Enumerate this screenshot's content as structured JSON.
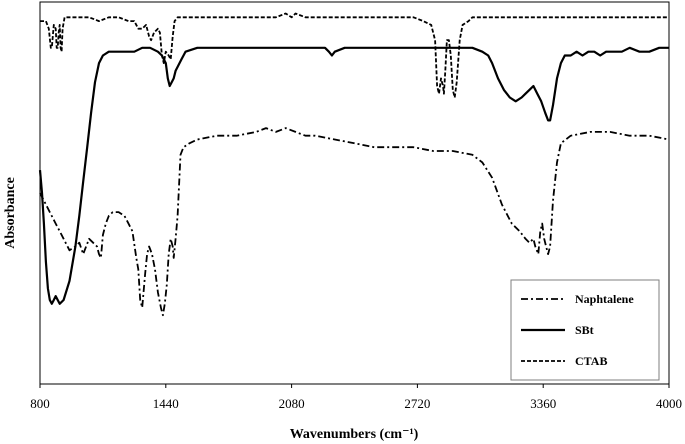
{
  "chart_data": {
    "type": "line",
    "xlabel": "Wavenumbers (cm⁻¹)",
    "ylabel": "Absorbance",
    "xlim": [
      800,
      4000
    ],
    "ylim": [
      0,
      1
    ],
    "x_ticks": [
      "800",
      "1440",
      "2080",
      "2720",
      "3360",
      "4000"
    ],
    "x_tick_values": [
      800,
      1440,
      2080,
      2720,
      3360,
      4000
    ],
    "grid": false,
    "legend_position": "bottom-right",
    "series": [
      {
        "name": "Naphtalene",
        "style": "dash-dot",
        "points": [
          [
            800,
            0.5
          ],
          [
            820,
            0.48
          ],
          [
            850,
            0.45
          ],
          [
            880,
            0.42
          ],
          [
            900,
            0.4
          ],
          [
            920,
            0.38
          ],
          [
            950,
            0.35
          ],
          [
            980,
            0.36
          ],
          [
            1000,
            0.37
          ],
          [
            1020,
            0.34
          ],
          [
            1050,
            0.38
          ],
          [
            1070,
            0.37
          ],
          [
            1090,
            0.36
          ],
          [
            1100,
            0.34
          ],
          [
            1110,
            0.33
          ],
          [
            1120,
            0.39
          ],
          [
            1135,
            0.42
          ],
          [
            1150,
            0.44
          ],
          [
            1170,
            0.45
          ],
          [
            1200,
            0.45
          ],
          [
            1230,
            0.44
          ],
          [
            1250,
            0.42
          ],
          [
            1270,
            0.4
          ],
          [
            1290,
            0.33
          ],
          [
            1300,
            0.3
          ],
          [
            1310,
            0.22
          ],
          [
            1320,
            0.2
          ],
          [
            1335,
            0.29
          ],
          [
            1345,
            0.34
          ],
          [
            1355,
            0.36
          ],
          [
            1370,
            0.34
          ],
          [
            1385,
            0.3
          ],
          [
            1400,
            0.24
          ],
          [
            1415,
            0.2
          ],
          [
            1425,
            0.18
          ],
          [
            1435,
            0.21
          ],
          [
            1445,
            0.26
          ],
          [
            1455,
            0.34
          ],
          [
            1465,
            0.38
          ],
          [
            1475,
            0.36
          ],
          [
            1480,
            0.33
          ],
          [
            1490,
            0.38
          ],
          [
            1500,
            0.44
          ],
          [
            1515,
            0.6
          ],
          [
            1530,
            0.62
          ],
          [
            1560,
            0.63
          ],
          [
            1600,
            0.64
          ],
          [
            1700,
            0.65
          ],
          [
            1800,
            0.65
          ],
          [
            1900,
            0.66
          ],
          [
            1950,
            0.67
          ],
          [
            2000,
            0.66
          ],
          [
            2050,
            0.67
          ],
          [
            2100,
            0.66
          ],
          [
            2150,
            0.65
          ],
          [
            2200,
            0.65
          ],
          [
            2300,
            0.64
          ],
          [
            2400,
            0.63
          ],
          [
            2500,
            0.62
          ],
          [
            2600,
            0.62
          ],
          [
            2700,
            0.62
          ],
          [
            2800,
            0.61
          ],
          [
            2900,
            0.61
          ],
          [
            3000,
            0.6
          ],
          [
            3050,
            0.58
          ],
          [
            3100,
            0.54
          ],
          [
            3150,
            0.47
          ],
          [
            3200,
            0.42
          ],
          [
            3240,
            0.4
          ],
          [
            3270,
            0.38
          ],
          [
            3290,
            0.37
          ],
          [
            3310,
            0.38
          ],
          [
            3320,
            0.36
          ],
          [
            3335,
            0.34
          ],
          [
            3345,
            0.4
          ],
          [
            3355,
            0.42
          ],
          [
            3365,
            0.38
          ],
          [
            3375,
            0.36
          ],
          [
            3385,
            0.34
          ],
          [
            3395,
            0.36
          ],
          [
            3410,
            0.48
          ],
          [
            3430,
            0.58
          ],
          [
            3450,
            0.63
          ],
          [
            3500,
            0.65
          ],
          [
            3600,
            0.66
          ],
          [
            3700,
            0.66
          ],
          [
            3800,
            0.65
          ],
          [
            3900,
            0.65
          ],
          [
            4000,
            0.64
          ]
        ]
      },
      {
        "name": "SBt",
        "style": "solid",
        "points": [
          [
            800,
            0.56
          ],
          [
            810,
            0.5
          ],
          [
            820,
            0.42
          ],
          [
            830,
            0.32
          ],
          [
            840,
            0.25
          ],
          [
            850,
            0.22
          ],
          [
            860,
            0.21
          ],
          [
            870,
            0.22
          ],
          [
            880,
            0.23
          ],
          [
            890,
            0.22
          ],
          [
            900,
            0.21
          ],
          [
            920,
            0.22
          ],
          [
            950,
            0.27
          ],
          [
            980,
            0.36
          ],
          [
            1000,
            0.44
          ],
          [
            1020,
            0.53
          ],
          [
            1040,
            0.62
          ],
          [
            1060,
            0.71
          ],
          [
            1080,
            0.79
          ],
          [
            1100,
            0.84
          ],
          [
            1120,
            0.86
          ],
          [
            1150,
            0.87
          ],
          [
            1200,
            0.87
          ],
          [
            1280,
            0.87
          ],
          [
            1320,
            0.88
          ],
          [
            1360,
            0.88
          ],
          [
            1400,
            0.87
          ],
          [
            1420,
            0.86
          ],
          [
            1440,
            0.84
          ],
          [
            1450,
            0.8
          ],
          [
            1460,
            0.78
          ],
          [
            1470,
            0.79
          ],
          [
            1480,
            0.8
          ],
          [
            1490,
            0.82
          ],
          [
            1500,
            0.83
          ],
          [
            1520,
            0.85
          ],
          [
            1540,
            0.87
          ],
          [
            1600,
            0.88
          ],
          [
            1700,
            0.88
          ],
          [
            1800,
            0.88
          ],
          [
            1900,
            0.88
          ],
          [
            2000,
            0.88
          ],
          [
            2100,
            0.88
          ],
          [
            2200,
            0.88
          ],
          [
            2250,
            0.88
          ],
          [
            2270,
            0.87
          ],
          [
            2285,
            0.86
          ],
          [
            2300,
            0.87
          ],
          [
            2350,
            0.88
          ],
          [
            2500,
            0.88
          ],
          [
            2700,
            0.88
          ],
          [
            2900,
            0.88
          ],
          [
            3000,
            0.88
          ],
          [
            3050,
            0.87
          ],
          [
            3080,
            0.86
          ],
          [
            3100,
            0.84
          ],
          [
            3130,
            0.8
          ],
          [
            3160,
            0.77
          ],
          [
            3190,
            0.75
          ],
          [
            3220,
            0.74
          ],
          [
            3250,
            0.75
          ],
          [
            3270,
            0.76
          ],
          [
            3290,
            0.77
          ],
          [
            3310,
            0.78
          ],
          [
            3330,
            0.76
          ],
          [
            3350,
            0.74
          ],
          [
            3370,
            0.71
          ],
          [
            3385,
            0.69
          ],
          [
            3395,
            0.69
          ],
          [
            3410,
            0.73
          ],
          [
            3430,
            0.8
          ],
          [
            3450,
            0.84
          ],
          [
            3470,
            0.86
          ],
          [
            3500,
            0.86
          ],
          [
            3530,
            0.87
          ],
          [
            3560,
            0.86
          ],
          [
            3590,
            0.87
          ],
          [
            3620,
            0.87
          ],
          [
            3650,
            0.86
          ],
          [
            3680,
            0.87
          ],
          [
            3720,
            0.87
          ],
          [
            3760,
            0.87
          ],
          [
            3800,
            0.88
          ],
          [
            3850,
            0.87
          ],
          [
            3900,
            0.87
          ],
          [
            3950,
            0.88
          ],
          [
            4000,
            0.88
          ]
        ]
      },
      {
        "name": "CTAB",
        "style": "dashed",
        "points": [
          [
            800,
            0.95
          ],
          [
            815,
            0.95
          ],
          [
            830,
            0.95
          ],
          [
            845,
            0.93
          ],
          [
            855,
            0.88
          ],
          [
            860,
            0.88
          ],
          [
            870,
            0.94
          ],
          [
            880,
            0.93
          ],
          [
            885,
            0.88
          ],
          [
            890,
            0.88
          ],
          [
            895,
            0.92
          ],
          [
            900,
            0.94
          ],
          [
            905,
            0.88
          ],
          [
            910,
            0.87
          ],
          [
            915,
            0.93
          ],
          [
            925,
            0.96
          ],
          [
            950,
            0.96
          ],
          [
            1000,
            0.96
          ],
          [
            1050,
            0.96
          ],
          [
            1100,
            0.95
          ],
          [
            1150,
            0.96
          ],
          [
            1200,
            0.96
          ],
          [
            1250,
            0.95
          ],
          [
            1280,
            0.95
          ],
          [
            1300,
            0.93
          ],
          [
            1320,
            0.93
          ],
          [
            1340,
            0.94
          ],
          [
            1355,
            0.91
          ],
          [
            1365,
            0.9
          ],
          [
            1380,
            0.92
          ],
          [
            1400,
            0.93
          ],
          [
            1410,
            0.92
          ],
          [
            1420,
            0.86
          ],
          [
            1430,
            0.84
          ],
          [
            1440,
            0.87
          ],
          [
            1455,
            0.86
          ],
          [
            1465,
            0.85
          ],
          [
            1475,
            0.91
          ],
          [
            1485,
            0.95
          ],
          [
            1500,
            0.96
          ],
          [
            1600,
            0.96
          ],
          [
            1700,
            0.96
          ],
          [
            1800,
            0.96
          ],
          [
            1900,
            0.96
          ],
          [
            2000,
            0.96
          ],
          [
            2050,
            0.97
          ],
          [
            2080,
            0.96
          ],
          [
            2100,
            0.97
          ],
          [
            2150,
            0.96
          ],
          [
            2200,
            0.96
          ],
          [
            2300,
            0.96
          ],
          [
            2400,
            0.96
          ],
          [
            2500,
            0.96
          ],
          [
            2600,
            0.96
          ],
          [
            2700,
            0.96
          ],
          [
            2750,
            0.95
          ],
          [
            2790,
            0.94
          ],
          [
            2810,
            0.9
          ],
          [
            2820,
            0.78
          ],
          [
            2830,
            0.76
          ],
          [
            2840,
            0.8
          ],
          [
            2850,
            0.78
          ],
          [
            2855,
            0.76
          ],
          [
            2862,
            0.82
          ],
          [
            2870,
            0.9
          ],
          [
            2880,
            0.9
          ],
          [
            2890,
            0.86
          ],
          [
            2900,
            0.77
          ],
          [
            2910,
            0.75
          ],
          [
            2920,
            0.79
          ],
          [
            2935,
            0.9
          ],
          [
            2950,
            0.94
          ],
          [
            2980,
            0.95
          ],
          [
            3000,
            0.96
          ],
          [
            3050,
            0.96
          ],
          [
            3100,
            0.96
          ],
          [
            3200,
            0.96
          ],
          [
            3300,
            0.96
          ],
          [
            3400,
            0.96
          ],
          [
            3500,
            0.96
          ],
          [
            3600,
            0.96
          ],
          [
            3700,
            0.96
          ],
          [
            3800,
            0.96
          ],
          [
            3900,
            0.96
          ],
          [
            4000,
            0.96
          ]
        ]
      }
    ]
  }
}
